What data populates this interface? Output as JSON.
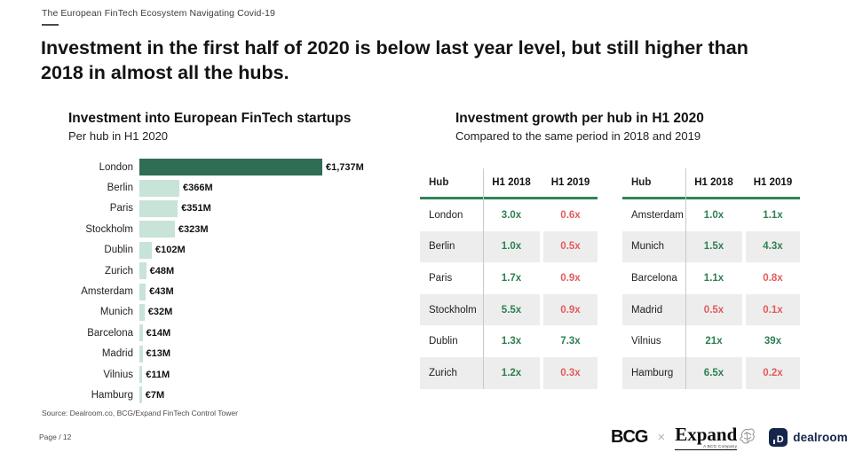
{
  "page": {
    "eyebrow": "The European FinTech Ecosystem Navigating Covid-19",
    "title_line1": "Investment in the first half of 2020 is below last year level, but still higher than",
    "title_line2": "2018 in almost all the hubs.",
    "source": "Source: Dealroom.co, BCG/Expand FinTech Control Tower",
    "page_number": "Page / 12"
  },
  "colors": {
    "dark_green": "#2f6d54",
    "light_green": "#c8e3d8",
    "table_green": "#2e8052",
    "table_red": "#e25c5c",
    "rule_green": "#2e8657",
    "navy": "#16254c"
  },
  "chart_data": [
    {
      "type": "bar",
      "orientation": "horizontal",
      "title": "Investment into European FinTech startups",
      "subtitle": "Per hub in H1 2020",
      "categories": [
        "London",
        "Berlin",
        "Paris",
        "Stockholm",
        "Dublin",
        "Zurich",
        "Amsterdam",
        "Munich",
        "Barcelona",
        "Madrid",
        "Vilnius",
        "Hamburg"
      ],
      "values": [
        1737,
        366,
        351,
        323,
        102,
        48,
        43,
        32,
        14,
        13,
        11,
        7
      ],
      "value_labels": [
        "€1,737M",
        "€366M",
        "€351M",
        "€323M",
        "€102M",
        "€48M",
        "€43M",
        "€32M",
        "€14M",
        "€13M",
        "€11M",
        "€7M"
      ],
      "unit": "EUR millions",
      "xlim": [
        0,
        1737
      ],
      "highlight_index": 0,
      "grid": false
    },
    {
      "type": "table",
      "title": "Investment growth per hub in H1 2020",
      "subtitle": "Compared to the same period in 2018 and 2019",
      "columns": [
        "Hub",
        "H1 2018",
        "H1 2019"
      ],
      "rows": [
        {
          "hub": "London",
          "v2018": "3.0x",
          "c2018": "green",
          "v2019": "0.6x",
          "c2019": "red"
        },
        {
          "hub": "Berlin",
          "v2018": "1.0x",
          "c2018": "green",
          "v2019": "0.5x",
          "c2019": "red"
        },
        {
          "hub": "Paris",
          "v2018": "1.7x",
          "c2018": "green",
          "v2019": "0.9x",
          "c2019": "red"
        },
        {
          "hub": "Stockholm",
          "v2018": "5.5x",
          "c2018": "green",
          "v2019": "0.9x",
          "c2019": "red"
        },
        {
          "hub": "Dublin",
          "v2018": "1.3x",
          "c2018": "green",
          "v2019": "7.3x",
          "c2019": "green"
        },
        {
          "hub": "Zurich",
          "v2018": "1.2x",
          "c2018": "green",
          "v2019": "0.3x",
          "c2019": "red"
        }
      ]
    },
    {
      "type": "table",
      "columns": [
        "Hub",
        "H1 2018",
        "H1 2019"
      ],
      "rows": [
        {
          "hub": "Amsterdam",
          "v2018": "1.0x",
          "c2018": "green",
          "v2019": "1.1x",
          "c2019": "green"
        },
        {
          "hub": "Munich",
          "v2018": "1.5x",
          "c2018": "green",
          "v2019": "4.3x",
          "c2019": "green"
        },
        {
          "hub": "Barcelona",
          "v2018": "1.1x",
          "c2018": "green",
          "v2019": "0.8x",
          "c2019": "red"
        },
        {
          "hub": "Madrid",
          "v2018": "0.5x",
          "c2018": "red",
          "v2019": "0.1x",
          "c2019": "red"
        },
        {
          "hub": "Vilnius",
          "v2018": "21x",
          "c2018": "green",
          "v2019": "39x",
          "c2019": "green"
        },
        {
          "hub": "Hamburg",
          "v2018": "6.5x",
          "c2018": "green",
          "v2019": "0.2x",
          "c2019": "red"
        }
      ]
    }
  ],
  "footer": {
    "bcg_label": "BCG",
    "separator": "×",
    "expand_label": "Expand",
    "expand_sublabel": "A BCG Company",
    "dealroom_icon": "D",
    "dealroom_label": "dealroom.co"
  }
}
